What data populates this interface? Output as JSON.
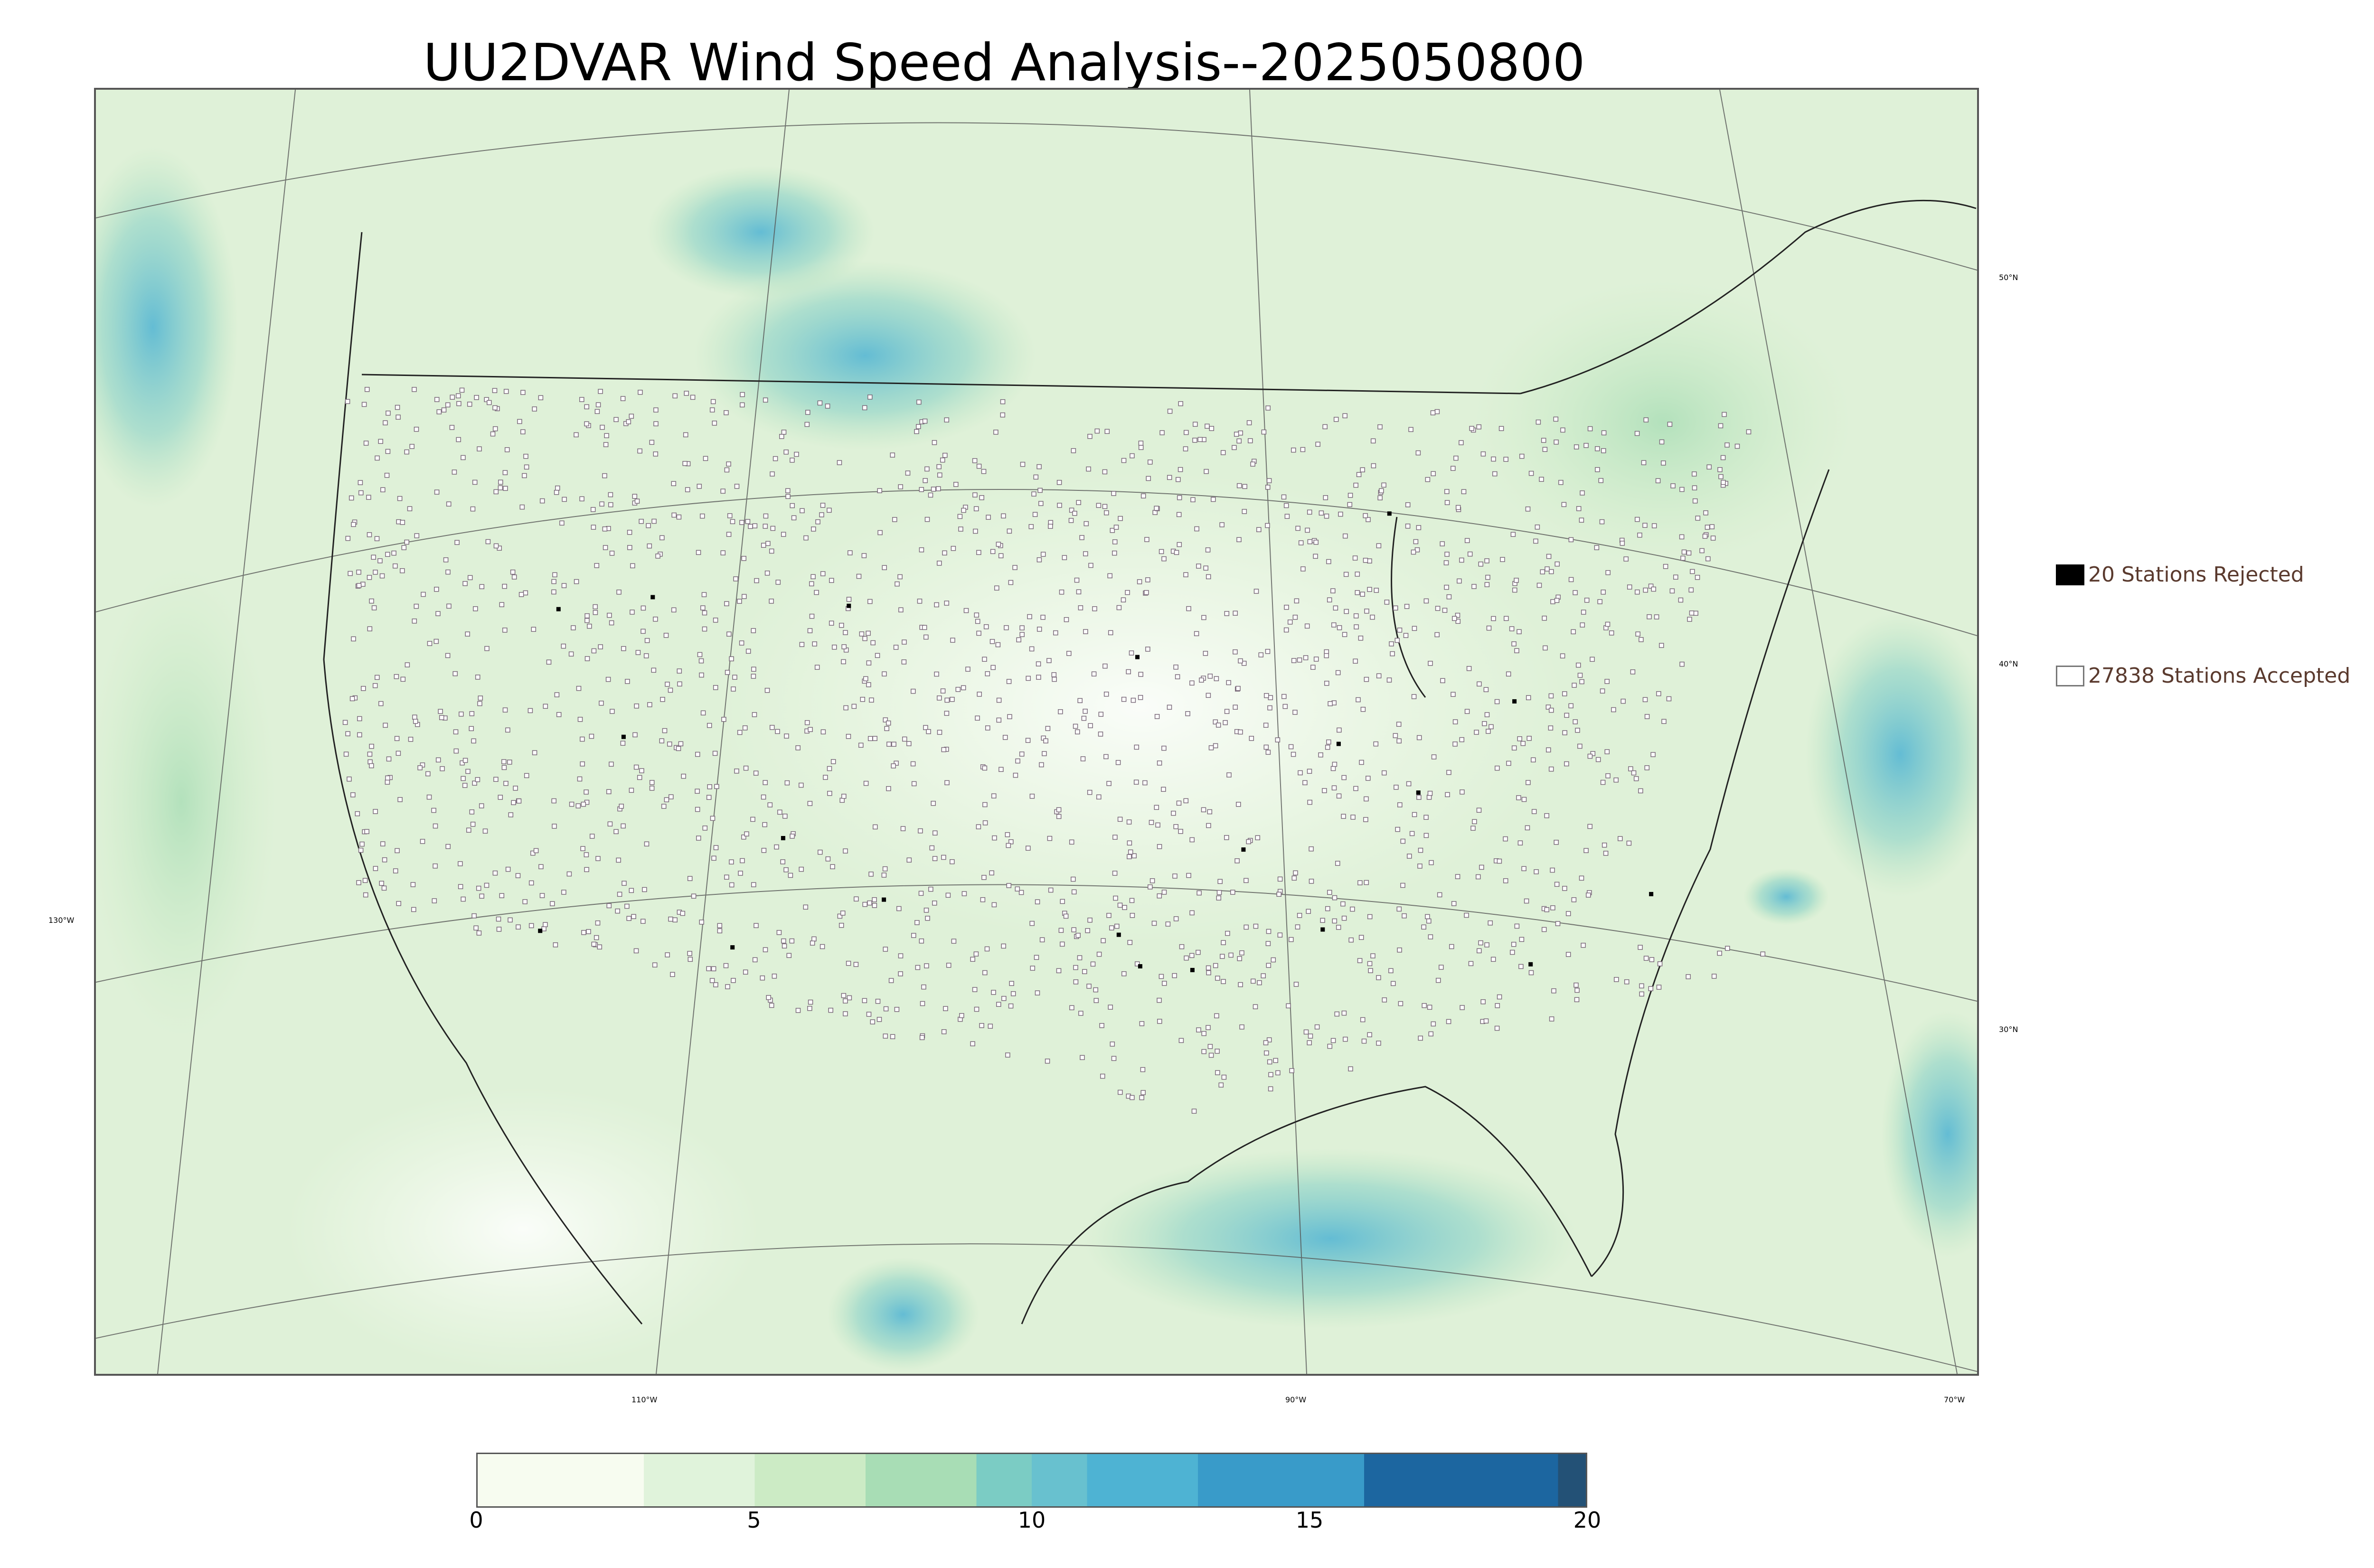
{
  "title": "UU2DVAR Wind Speed Analysis--2025050800",
  "map": {
    "latitude_labels": [
      "50°N",
      "40°N",
      "30°N"
    ],
    "longitude_labels": [
      "130°W",
      "110°W",
      "90°W",
      "70°W"
    ],
    "colors": {
      "background": "#eaf6e3",
      "border": "#555555",
      "station_outline": "#7a6a7a"
    }
  },
  "legend": {
    "rejected": {
      "label": "20 Stations Rejected",
      "color": "#000000"
    },
    "accepted": {
      "label": "27838 Stations Accepted",
      "color": "#ffffff"
    }
  },
  "colorbar": {
    "min": 0,
    "max": 20,
    "tick_labels": [
      "0",
      "5",
      "10",
      "15",
      "20"
    ],
    "colors": [
      "#f7fcf0",
      "#e0f3db",
      "#ccebc5",
      "#a8ddb5",
      "#7bccc4",
      "#68c1cf",
      "#4eb3d3",
      "#399bc9",
      "#1c66a0",
      "#235176"
    ],
    "bounds": [
      0,
      3,
      5,
      7,
      9,
      10,
      11,
      13,
      16,
      19.5,
      20
    ]
  }
}
